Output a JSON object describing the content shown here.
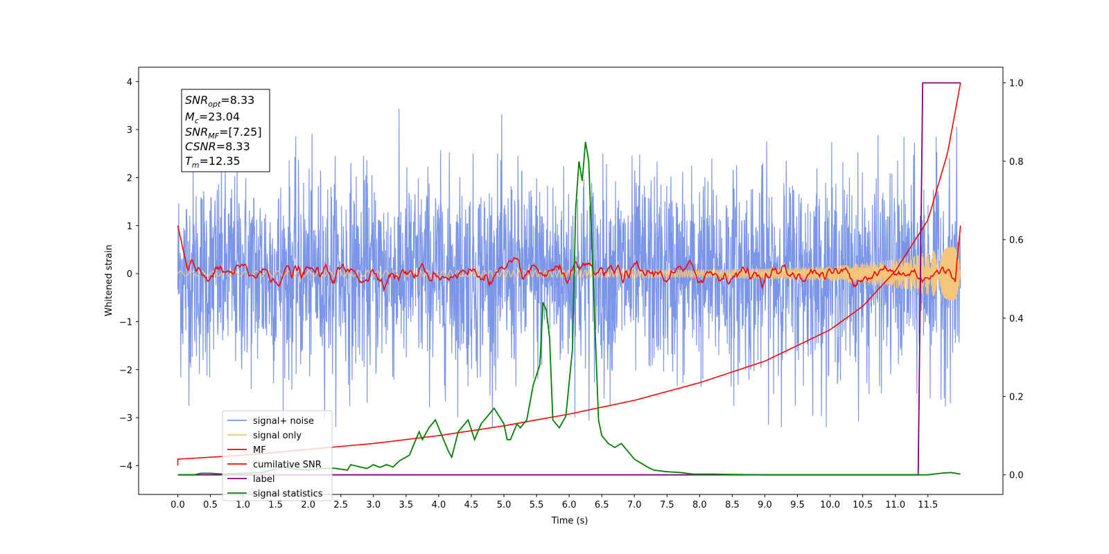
{
  "chart_data": {
    "type": "line",
    "xlabel": "Time (s)",
    "ylabel": "Whitened strain",
    "xlim": [
      -0.6,
      12.65
    ],
    "ylim": [
      -4.6,
      4.3
    ],
    "ylim_right": [
      -0.05,
      1.04
    ],
    "x_ticks": [
      "0.0",
      "0.5",
      "1.0",
      "1.5",
      "2.0",
      "2.5",
      "3.0",
      "3.5",
      "4.0",
      "4.5",
      "5.0",
      "5.5",
      "6.0",
      "6.5",
      "7.0",
      "7.5",
      "8.0",
      "8.5",
      "9.0",
      "9.5",
      "10.0",
      "10.5",
      "11.0",
      "11.5"
    ],
    "y_ticks_left": [
      "4",
      "3",
      "2",
      "1",
      "0",
      "−1",
      "−2",
      "−3",
      "−4"
    ],
    "y_ticks_right": [
      "1.0",
      "0.8",
      "0.6",
      "0.4",
      "0.2",
      "0.0"
    ],
    "stats_box": {
      "snr_opt": {
        "base": "SNR",
        "sub": "opt",
        "value": "=8.33"
      },
      "mc": {
        "base": "M",
        "sub": "c",
        "value": "=23.04"
      },
      "snr_mf": {
        "base": "SNR",
        "sub": "MF",
        "value": "=[7.25]"
      },
      "csnr": {
        "base": "CSNR",
        "value": "=8.33"
      },
      "tm": {
        "base": "T",
        "sub": "m",
        "value": "=12.35"
      }
    },
    "legend": {
      "position": "lower left",
      "entries": [
        {
          "label": "signal+ noise",
          "color": "#7b96e8"
        },
        {
          "label": "signal only",
          "color": "#f5c57a"
        },
        {
          "label": "MF",
          "color": "#ff0000"
        },
        {
          "label": "cumilative SNR",
          "color": "#ff0000"
        },
        {
          "label": "label",
          "color": "#800080"
        },
        {
          "label": "signal statistics",
          "color": "#008000"
        }
      ]
    },
    "series": [
      {
        "name": "signal+ noise",
        "axis": "left",
        "color": "#7b96e8",
        "description_range": [
          -3.2,
          3.9
        ],
        "x_range": [
          0.0,
          12.0
        ]
      },
      {
        "name": "signal only",
        "axis": "left",
        "color": "#f5c57a",
        "envelope": [
          [
            0.0,
            0.05
          ],
          [
            8.0,
            0.08
          ],
          [
            10.0,
            0.15
          ],
          [
            11.0,
            0.3
          ],
          [
            11.5,
            0.45
          ],
          [
            12.0,
            0.6
          ]
        ]
      },
      {
        "name": "MF",
        "axis": "left",
        "color": "#ff0000",
        "x_range": [
          0.0,
          12.0
        ],
        "start": 1.0,
        "level": 0.0,
        "amplitude": 0.3
      },
      {
        "name": "cumilative SNR",
        "axis": "right",
        "color": "#ff0000",
        "points": [
          [
            0.0,
            0.04
          ],
          [
            1.0,
            0.05
          ],
          [
            2.0,
            0.065
          ],
          [
            3.0,
            0.08
          ],
          [
            4.0,
            0.1
          ],
          [
            5.0,
            0.125
          ],
          [
            6.0,
            0.155
          ],
          [
            7.0,
            0.19
          ],
          [
            8.0,
            0.235
          ],
          [
            9.0,
            0.29
          ],
          [
            10.0,
            0.37
          ],
          [
            10.5,
            0.43
          ],
          [
            11.0,
            0.52
          ],
          [
            11.5,
            0.65
          ],
          [
            11.8,
            0.82
          ],
          [
            12.0,
            1.0
          ]
        ]
      },
      {
        "name": "label",
        "axis": "right",
        "color": "#800080",
        "points": [
          [
            0.0,
            0.0
          ],
          [
            11.35,
            0.0
          ],
          [
            11.42,
            1.0
          ],
          [
            12.0,
            1.0
          ]
        ]
      },
      {
        "name": "signal statistics",
        "axis": "right",
        "color": "#008000",
        "points": [
          [
            0.0,
            0.0
          ],
          [
            0.25,
            0.0
          ],
          [
            0.35,
            0.004
          ],
          [
            0.5,
            0.004
          ],
          [
            0.7,
            0.002
          ],
          [
            1.0,
            0.004
          ],
          [
            1.3,
            0.006
          ],
          [
            1.6,
            0.02
          ],
          [
            1.8,
            0.015
          ],
          [
            2.0,
            0.012
          ],
          [
            2.2,
            0.016
          ],
          [
            2.4,
            0.017
          ],
          [
            2.6,
            0.012
          ],
          [
            2.65,
            0.026
          ],
          [
            2.8,
            0.02
          ],
          [
            2.9,
            0.016
          ],
          [
            3.0,
            0.026
          ],
          [
            3.1,
            0.019
          ],
          [
            3.2,
            0.026
          ],
          [
            3.3,
            0.02
          ],
          [
            3.4,
            0.036
          ],
          [
            3.55,
            0.05
          ],
          [
            3.6,
            0.07
          ],
          [
            3.7,
            0.11
          ],
          [
            3.75,
            0.09
          ],
          [
            3.85,
            0.12
          ],
          [
            3.95,
            0.14
          ],
          [
            4.05,
            0.1
          ],
          [
            4.15,
            0.06
          ],
          [
            4.2,
            0.045
          ],
          [
            4.3,
            0.11
          ],
          [
            4.45,
            0.14
          ],
          [
            4.55,
            0.09
          ],
          [
            4.65,
            0.13
          ],
          [
            4.75,
            0.15
          ],
          [
            4.85,
            0.17
          ],
          [
            5.0,
            0.13
          ],
          [
            5.05,
            0.09
          ],
          [
            5.1,
            0.09
          ],
          [
            5.2,
            0.13
          ],
          [
            5.25,
            0.12
          ],
          [
            5.35,
            0.14
          ],
          [
            5.45,
            0.23
          ],
          [
            5.55,
            0.28
          ],
          [
            5.6,
            0.44
          ],
          [
            5.65,
            0.42
          ],
          [
            5.7,
            0.35
          ],
          [
            5.75,
            0.14
          ],
          [
            5.85,
            0.12
          ],
          [
            5.95,
            0.15
          ],
          [
            6.05,
            0.32
          ],
          [
            6.1,
            0.68
          ],
          [
            6.15,
            0.8
          ],
          [
            6.2,
            0.75
          ],
          [
            6.25,
            0.85
          ],
          [
            6.3,
            0.8
          ],
          [
            6.45,
            0.14
          ],
          [
            6.5,
            0.1
          ],
          [
            6.6,
            0.08
          ],
          [
            6.7,
            0.07
          ],
          [
            6.8,
            0.08
          ],
          [
            6.9,
            0.06
          ],
          [
            7.0,
            0.04
          ],
          [
            7.1,
            0.03
          ],
          [
            7.2,
            0.02
          ],
          [
            7.3,
            0.012
          ],
          [
            7.5,
            0.008
          ],
          [
            7.7,
            0.006
          ],
          [
            7.9,
            0.002
          ],
          [
            8.2,
            0.002
          ],
          [
            8.5,
            0.001
          ],
          [
            9.0,
            0.0
          ],
          [
            9.5,
            0.0
          ],
          [
            10.0,
            0.0
          ],
          [
            10.5,
            0.0
          ],
          [
            11.0,
            0.0
          ],
          [
            11.5,
            0.0
          ],
          [
            11.7,
            0.004
          ],
          [
            11.85,
            0.006
          ],
          [
            12.0,
            0.002
          ]
        ]
      }
    ]
  }
}
